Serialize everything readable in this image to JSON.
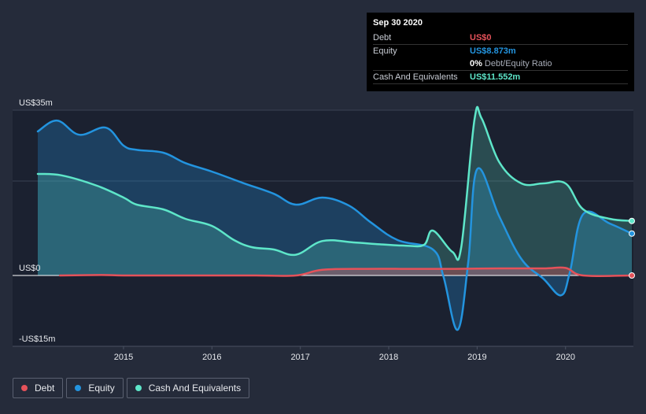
{
  "chart_data": {
    "type": "area",
    "title": "",
    "xlabel": "",
    "ylabel": "",
    "ylim": [
      -15,
      35
    ],
    "y_ticks": [
      {
        "value": 35,
        "label": "US$35m"
      },
      {
        "value": 0,
        "label": "US$0"
      },
      {
        "value": -15,
        "label": "-US$15m"
      }
    ],
    "x_range": [
      2014.03,
      2020.75
    ],
    "x_ticks": [
      {
        "value": 2015,
        "label": "2015"
      },
      {
        "value": 2016,
        "label": "2016"
      },
      {
        "value": 2017,
        "label": "2017"
      },
      {
        "value": 2018,
        "label": "2018"
      },
      {
        "value": 2019,
        "label": "2019"
      },
      {
        "value": 2020,
        "label": "2020"
      }
    ],
    "series": [
      {
        "name": "Debt",
        "color": "#e5525a",
        "x": [
          2014.28,
          2014.75,
          2015.0,
          2015.5,
          2016.0,
          2016.5,
          2016.95,
          2017.25,
          2017.75,
          2018.25,
          2018.75,
          2019.25,
          2019.75,
          2020.0,
          2020.2,
          2020.75
        ],
        "values": [
          0,
          0.1,
          0,
          0,
          0,
          0,
          0,
          1.2,
          1.4,
          1.4,
          1.4,
          1.5,
          1.5,
          1.6,
          0,
          0
        ]
      },
      {
        "name": "Equity",
        "color": "#2394df",
        "x": [
          2014.03,
          2014.25,
          2014.5,
          2014.8,
          2015.0,
          2015.15,
          2015.45,
          2015.7,
          2016.0,
          2016.35,
          2016.7,
          2016.95,
          2017.25,
          2017.55,
          2017.8,
          2018.1,
          2018.5,
          2018.62,
          2018.78,
          2018.9,
          2019.0,
          2019.25,
          2019.5,
          2019.75,
          2019.95,
          2020.05,
          2020.2,
          2020.5,
          2020.75
        ],
        "values": [
          30.5,
          32.8,
          29.8,
          31.3,
          27.5,
          26.6,
          26.0,
          23.8,
          22.0,
          19.6,
          17.3,
          15.0,
          16.5,
          14.8,
          11.2,
          7.5,
          5.5,
          -0.3,
          -11.5,
          3.0,
          22.5,
          12.5,
          3.5,
          -0.7,
          -4.2,
          0.8,
          13.0,
          11.0,
          8.873
        ]
      },
      {
        "name": "Cash And Equivalents",
        "color": "#5ee6c9",
        "x": [
          2014.03,
          2014.3,
          2014.7,
          2015.0,
          2015.15,
          2015.45,
          2015.7,
          2016.0,
          2016.25,
          2016.45,
          2016.7,
          2016.95,
          2017.25,
          2017.6,
          2017.9,
          2018.2,
          2018.4,
          2018.5,
          2018.72,
          2018.82,
          2018.97,
          2019.05,
          2019.25,
          2019.5,
          2019.75,
          2020.0,
          2020.2,
          2020.5,
          2020.75
        ],
        "values": [
          21.5,
          21.2,
          19.0,
          16.5,
          15.0,
          14.0,
          12.0,
          10.5,
          7.5,
          6.0,
          5.5,
          4.4,
          7.3,
          7.0,
          6.6,
          6.3,
          6.5,
          9.5,
          5.0,
          6.0,
          33.0,
          33.3,
          24.0,
          19.5,
          19.5,
          19.5,
          14.0,
          12.0,
          11.552
        ]
      }
    ],
    "tooltip": {
      "date": "Sep 30 2020",
      "rows": [
        {
          "label": "Debt",
          "value": "US$0",
          "color": "#e5525a"
        },
        {
          "label": "Equity",
          "value": "US$8.873m",
          "color": "#2394df"
        }
      ],
      "ratio_pct": "0%",
      "ratio_text": "Debt/Equity Ratio",
      "cash_label": "Cash And Equivalents",
      "cash_value": "US$11.552m",
      "cash_color": "#5ee6c9"
    },
    "legend": [
      {
        "name": "Debt",
        "color": "#e5525a"
      },
      {
        "name": "Equity",
        "color": "#2394df"
      },
      {
        "name": "Cash And Equivalents",
        "color": "#5ee6c9"
      }
    ]
  }
}
